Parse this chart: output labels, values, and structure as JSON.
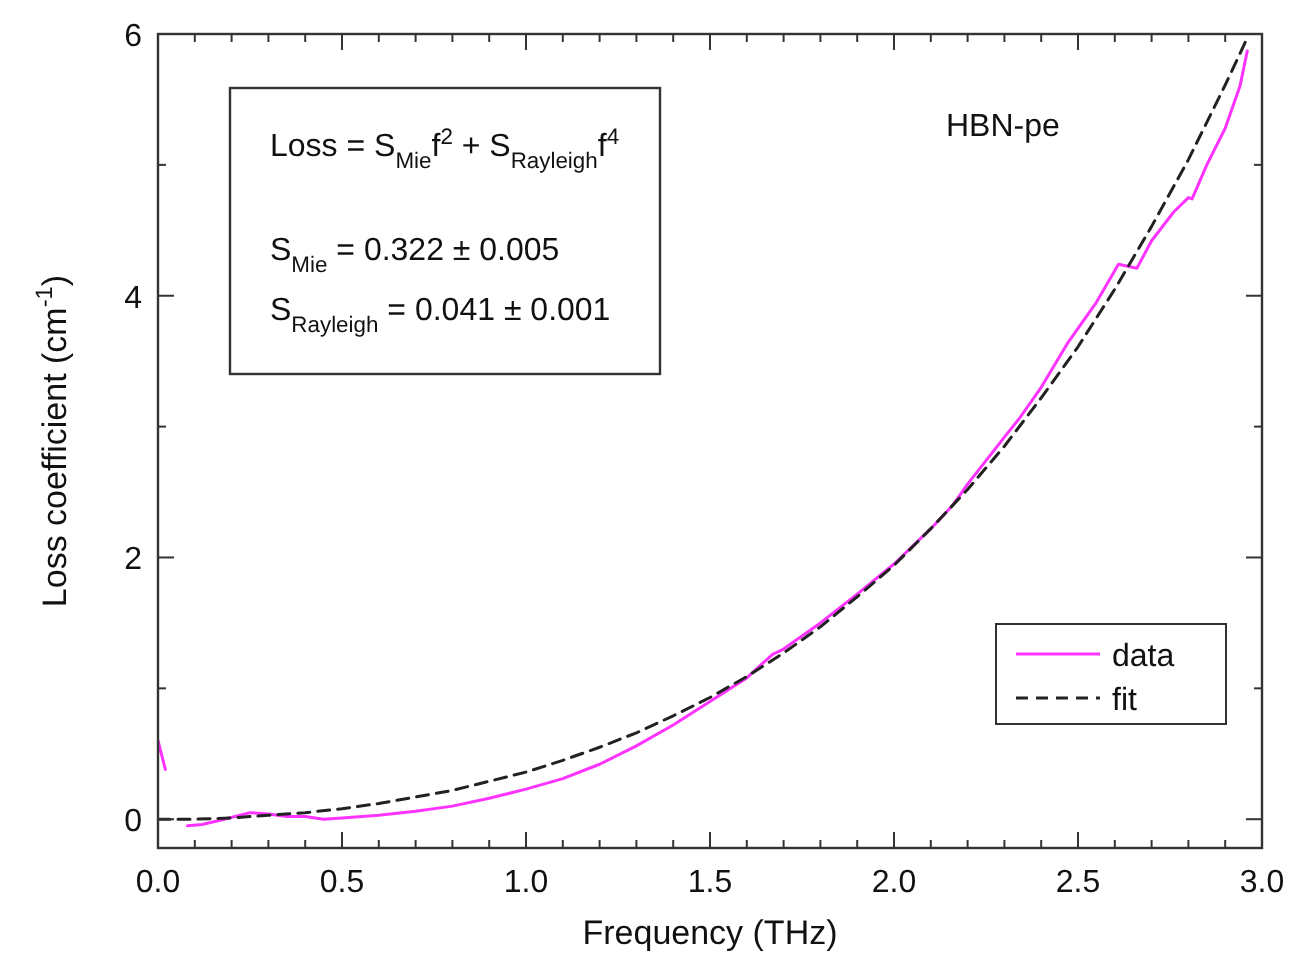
{
  "chart_data": {
    "type": "line",
    "xlabel": "Frequency (THz)",
    "ylabel": "Loss coefficient (cm$^{-1}$)",
    "xlim": [
      0,
      3
    ],
    "ylim": [
      -0.22,
      6
    ],
    "xticks": [
      {
        "value": 0,
        "label": "0.0"
      },
      {
        "value": 0.1,
        "label": null
      },
      {
        "value": 0.2,
        "label": null
      },
      {
        "value": 0.3,
        "label": null
      },
      {
        "value": 0.4,
        "label": null
      },
      0.5,
      {
        "value": 0.6,
        "label": null
      },
      {
        "value": 0.7,
        "label": null
      },
      {
        "value": 0.8,
        "label": null
      },
      {
        "value": 0.9,
        "label": null
      },
      {
        "value": 1,
        "label": "1.0"
      },
      {
        "value": 1.1,
        "label": null
      },
      {
        "value": 1.2,
        "label": null
      },
      {
        "value": 1.3,
        "label": null
      },
      {
        "value": 1.4,
        "label": null
      },
      1.5,
      {
        "value": 1.6,
        "label": null
      },
      {
        "value": 1.7,
        "label": null
      },
      {
        "value": 1.8,
        "label": null
      },
      {
        "value": 1.9,
        "label": null
      },
      {
        "value": 2,
        "label": "2.0"
      },
      {
        "value": 2.1,
        "label": null
      },
      {
        "value": 2.2,
        "label": null
      },
      {
        "value": 2.3,
        "label": null
      },
      {
        "value": 2.4,
        "label": null
      },
      2.5,
      {
        "value": 2.6,
        "label": null
      },
      {
        "value": 2.7,
        "label": null
      },
      {
        "value": 2.8,
        "label": null
      },
      {
        "value": 2.9,
        "label": null
      },
      {
        "value": 3,
        "label": "3.0"
      }
    ],
    "yticks": [
      0,
      {
        "value": 1,
        "label": null
      },
      2,
      {
        "value": 3,
        "label": null
      },
      4,
      {
        "value": 5,
        "label": null
      },
      6
    ],
    "grid": false,
    "legend": "bottom right",
    "series": [
      {
        "name": "data",
        "color": "#ff33ff",
        "line_style": "solid",
        "x": [
          0,
          0.02,
          0.03,
          0.06,
          0.08,
          0.12,
          0.18,
          0.25,
          0.3,
          0.35,
          0.4,
          0.45,
          0.5,
          0.6,
          0.7,
          0.8,
          0.9,
          1.0,
          1.1,
          1.2,
          1.3,
          1.4,
          1.5,
          1.6,
          1.67,
          1.7,
          1.8,
          1.9,
          2.0,
          2.1,
          2.16,
          2.2,
          2.3,
          2.34,
          2.4,
          2.47,
          2.5,
          2.55,
          2.61,
          2.66,
          2.7,
          2.76,
          2.8,
          2.81,
          2.85,
          2.9,
          2.94,
          2.96
        ],
        "values": [
          0.6,
          0.38,
          null,
          null,
          -0.05,
          -0.04,
          0.0,
          0.05,
          0.04,
          0.02,
          0.02,
          0.0,
          0.01,
          0.03,
          0.06,
          0.1,
          0.16,
          0.23,
          0.31,
          0.42,
          0.56,
          0.72,
          0.9,
          1.08,
          1.26,
          1.3,
          1.5,
          1.72,
          1.95,
          2.22,
          2.4,
          2.56,
          2.92,
          3.06,
          3.3,
          3.63,
          3.75,
          3.95,
          4.24,
          4.21,
          4.42,
          4.64,
          4.75,
          4.74,
          5.0,
          5.28,
          5.6,
          5.87
        ]
      },
      {
        "name": "fit",
        "color": "#222222",
        "line_style": "dashed",
        "x": [
          0,
          0.1,
          0.2,
          0.3,
          0.4,
          0.5,
          0.6,
          0.7,
          0.8,
          0.9,
          1.0,
          1.1,
          1.2,
          1.3,
          1.4,
          1.5,
          1.6,
          1.7,
          1.8,
          1.9,
          2.0,
          2.1,
          2.2,
          2.3,
          2.4,
          2.5,
          2.6,
          2.7,
          2.8,
          2.9,
          2.96
        ],
        "values": [
          0,
          0.0,
          0.01,
          0.03,
          0.05,
          0.08,
          0.12,
          0.17,
          0.22,
          0.29,
          0.36,
          0.45,
          0.55,
          0.66,
          0.79,
          0.93,
          1.09,
          1.27,
          1.47,
          1.7,
          1.94,
          2.22,
          2.52,
          2.85,
          3.22,
          3.61,
          4.05,
          4.53,
          5.04,
          5.61,
          5.97
        ]
      }
    ],
    "annotations": [
      "Loss = S$_{Mie}$f$^{2}$ + S$_{Rayleigh}$f$^{4}$",
      "S$_{Mie}$ = 0.322 ± 0.005",
      "S$_{Rayleigh}$ = 0.041 ± 0.001",
      "HBN-pe"
    ]
  }
}
